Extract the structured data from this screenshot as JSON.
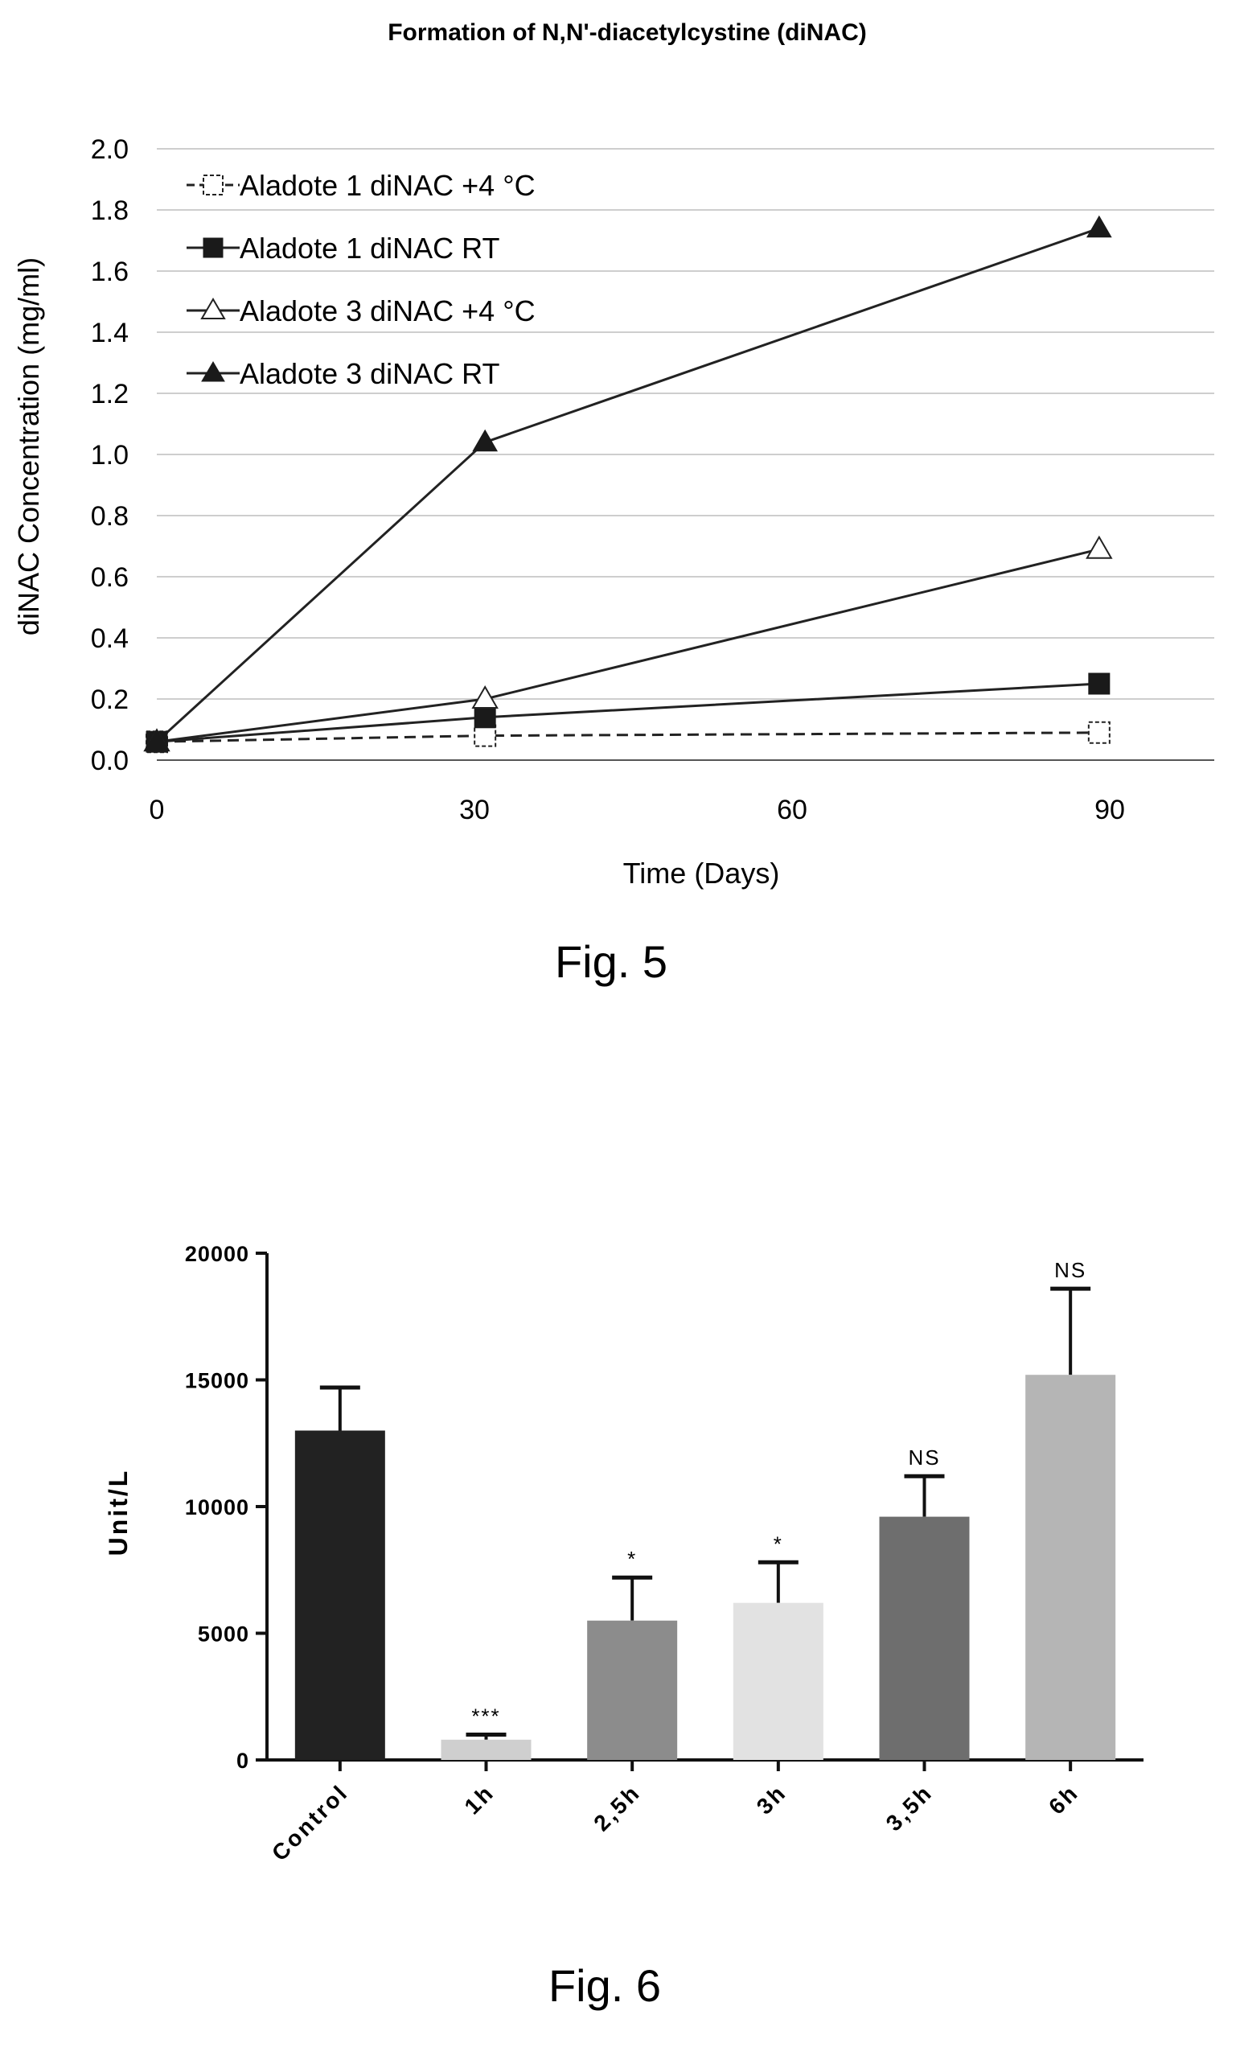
{
  "chart_data": [
    {
      "type": "line",
      "title": "Formation of N,N'-diacetylcystine (diNAC)",
      "xlabel": "Time (Days)",
      "ylabel": "diNAC Concentration (mg/ml)",
      "xlim": [
        0,
        120
      ],
      "ylim": [
        0,
        2.0
      ],
      "xticks": [
        "0",
        "30",
        "60",
        "90"
      ],
      "yticks": [
        "0.0",
        "0.2",
        "0.4",
        "0.6",
        "0.8",
        "1.0",
        "1.2",
        "1.4",
        "1.6",
        "1.8",
        "2.0"
      ],
      "grid": true,
      "legend_position": "top-left",
      "series": [
        {
          "name": "Aladote 1 diNAC +4 °C",
          "marker": "open-square",
          "line": "dashed",
          "x": [
            0,
            31,
            89
          ],
          "y": [
            0.06,
            0.08,
            0.09
          ]
        },
        {
          "name": "Aladote 1 diNAC RT",
          "marker": "filled-square",
          "line": "solid",
          "x": [
            0,
            31,
            89
          ],
          "y": [
            0.06,
            0.14,
            0.25
          ]
        },
        {
          "name": "Aladote 3 diNAC +4 °C",
          "marker": "open-triangle",
          "line": "solid",
          "x": [
            0,
            31,
            89
          ],
          "y": [
            0.06,
            0.2,
            0.69
          ]
        },
        {
          "name": "Aladote 3 diNAC RT",
          "marker": "filled-triangle",
          "line": "solid",
          "x": [
            0,
            31,
            89
          ],
          "y": [
            0.06,
            1.04,
            1.74
          ]
        }
      ],
      "caption": "Fig. 5"
    },
    {
      "type": "bar",
      "title": "",
      "xlabel": "",
      "ylabel": "Unit/L",
      "ylim": [
        0,
        20000
      ],
      "yticks": [
        "0",
        "5000",
        "10000",
        "15000",
        "20000"
      ],
      "categories": [
        "Control",
        "1h",
        "2,5h",
        "3h",
        "3,5h",
        "6h"
      ],
      "values": [
        13000,
        800,
        5500,
        6200,
        9600,
        15200
      ],
      "errors": [
        1700,
        200,
        1700,
        1600,
        1600,
        3400
      ],
      "annotations": [
        "",
        "***",
        "*",
        "*",
        "NS",
        "NS"
      ],
      "colors": [
        "#222222",
        "#cfcfcf",
        "#8c8c8c",
        "#e2e2e2",
        "#6e6e6e",
        "#b5b5b5"
      ],
      "caption": "Fig. 6"
    }
  ]
}
